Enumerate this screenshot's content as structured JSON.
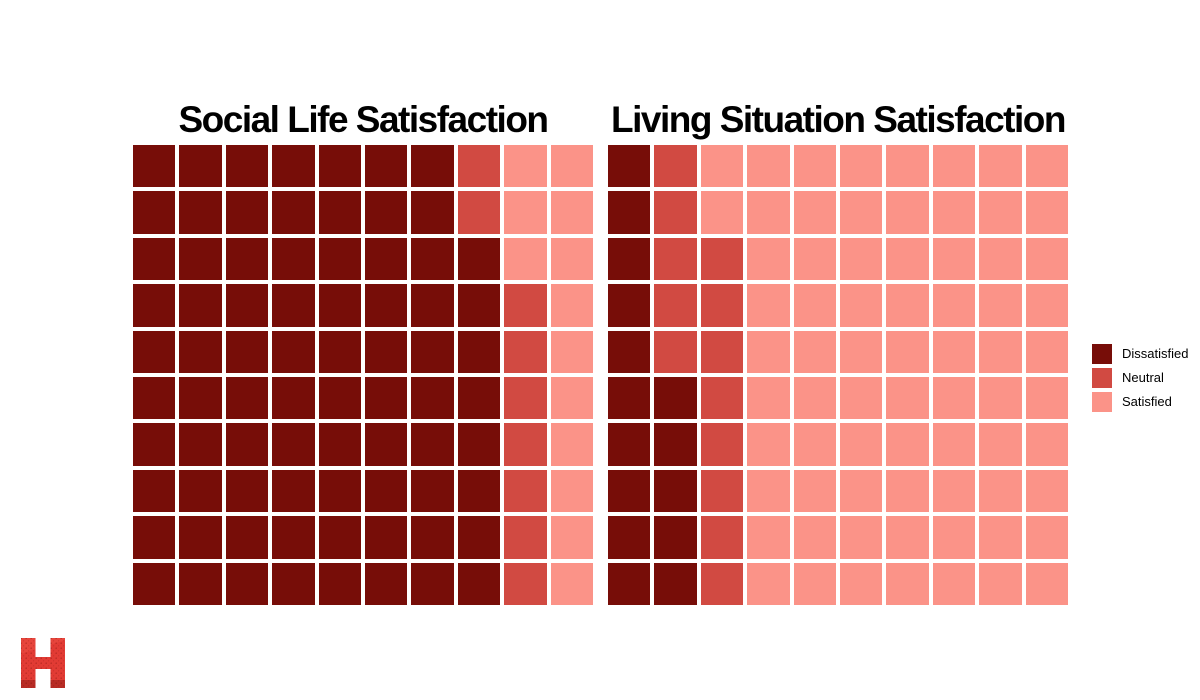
{
  "page": {
    "background": "#FFFFFF"
  },
  "colors": {
    "dissatisfied": "#770D08",
    "neutral": "#D14A42",
    "satisfied": "#FB9388",
    "title": "#000000",
    "background": "#FFFFFF",
    "logo_red": "#E23B34",
    "logo_red_light": "#EA4A40",
    "logo_dot_dark": "#8E1D15"
  },
  "cell_key": {
    "D": "dissatisfied",
    "N": "neutral",
    "S": "satisfied"
  },
  "chart_data": [
    {
      "type": "waffle",
      "title": "Social Life Satisfaction",
      "rows": 10,
      "cols": 10,
      "categories": [
        "Dissatisfied",
        "Neutral",
        "Satisfied"
      ],
      "values": [
        78,
        9,
        13
      ],
      "layout_hint": "column-major fill from bottom-left; 1 square = 1 unit of 100",
      "grid_rows_top_to_bottom": [
        "DDDDDDDNSS",
        "DDDDDDDNSS",
        "DDDDDDDDSS",
        "DDDDDDDDNS",
        "DDDDDDDDNS",
        "DDDDDDDDNS",
        "DDDDDDDDNS",
        "DDDDDDDDNS",
        "DDDDDDDDNS",
        "DDDDDDDDNS"
      ]
    },
    {
      "type": "waffle",
      "title": "Living Situation Satisfaction",
      "rows": 10,
      "cols": 10,
      "categories": [
        "Dissatisfied",
        "Neutral",
        "Satisfied"
      ],
      "values": [
        15,
        13,
        72
      ],
      "layout_hint": "column-major fill from bottom-left; 1 square = 1 unit of 100",
      "grid_rows_top_to_bottom": [
        "DNSSSSSSSS",
        "DNSSSSSSSS",
        "DNNSSSSSSS",
        "DNNSSSSSSS",
        "DNNSSSSSSS",
        "DDNSSSSSSS",
        "DDNSSSSSSS",
        "DDNSSSSSSS",
        "DDNSSSSSSS",
        "DDNSSSSSSS"
      ]
    }
  ],
  "legend": {
    "position": "right, vertically centered",
    "items": [
      {
        "label": "Dissatisfied",
        "key": "dissatisfied"
      },
      {
        "label": "Neutral",
        "key": "neutral"
      },
      {
        "label": "Satisfied",
        "key": "satisfied"
      }
    ]
  },
  "logo": {
    "letter": "H"
  }
}
